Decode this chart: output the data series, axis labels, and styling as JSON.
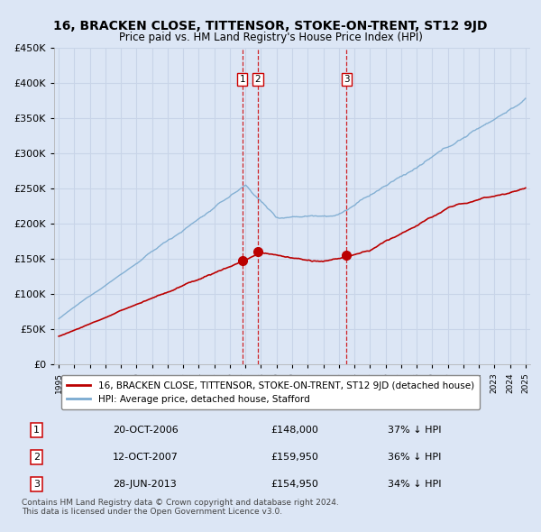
{
  "title": "16, BRACKEN CLOSE, TITTENSOR, STOKE-ON-TRENT, ST12 9JD",
  "subtitle": "Price paid vs. HM Land Registry's House Price Index (HPI)",
  "ylim": [
    0,
    450000
  ],
  "yticks": [
    0,
    50000,
    100000,
    150000,
    200000,
    250000,
    300000,
    350000,
    400000,
    450000
  ],
  "xlim_start": 1994.7,
  "xlim_end": 2025.3,
  "background_color": "#dce6f5",
  "plot_bg_color": "#dce6f5",
  "grid_color": "#c0cce0",
  "transactions": [
    {
      "label": "1",
      "date": "20-OCT-2006",
      "year": 2006.8,
      "price": 148000,
      "pct": "37% ↓ HPI"
    },
    {
      "label": "2",
      "date": "12-OCT-2007",
      "year": 2007.8,
      "price": 159950,
      "pct": "36% ↓ HPI"
    },
    {
      "label": "3",
      "date": "28-JUN-2013",
      "year": 2013.5,
      "price": 154950,
      "pct": "34% ↓ HPI"
    }
  ],
  "legend_entries": [
    "16, BRACKEN CLOSE, TITTENSOR, STOKE-ON-TRENT, ST12 9JD (detached house)",
    "HPI: Average price, detached house, Stafford"
  ],
  "footer_lines": [
    "Contains HM Land Registry data © Crown copyright and database right 2024.",
    "This data is licensed under the Open Government Licence v3.0."
  ],
  "red_line_color": "#bb0000",
  "blue_line_color": "#7aaad0",
  "vline_color": "#cc0000",
  "marker_box_color": "#cc0000",
  "title_fontsize": 10,
  "subtitle_fontsize": 9
}
